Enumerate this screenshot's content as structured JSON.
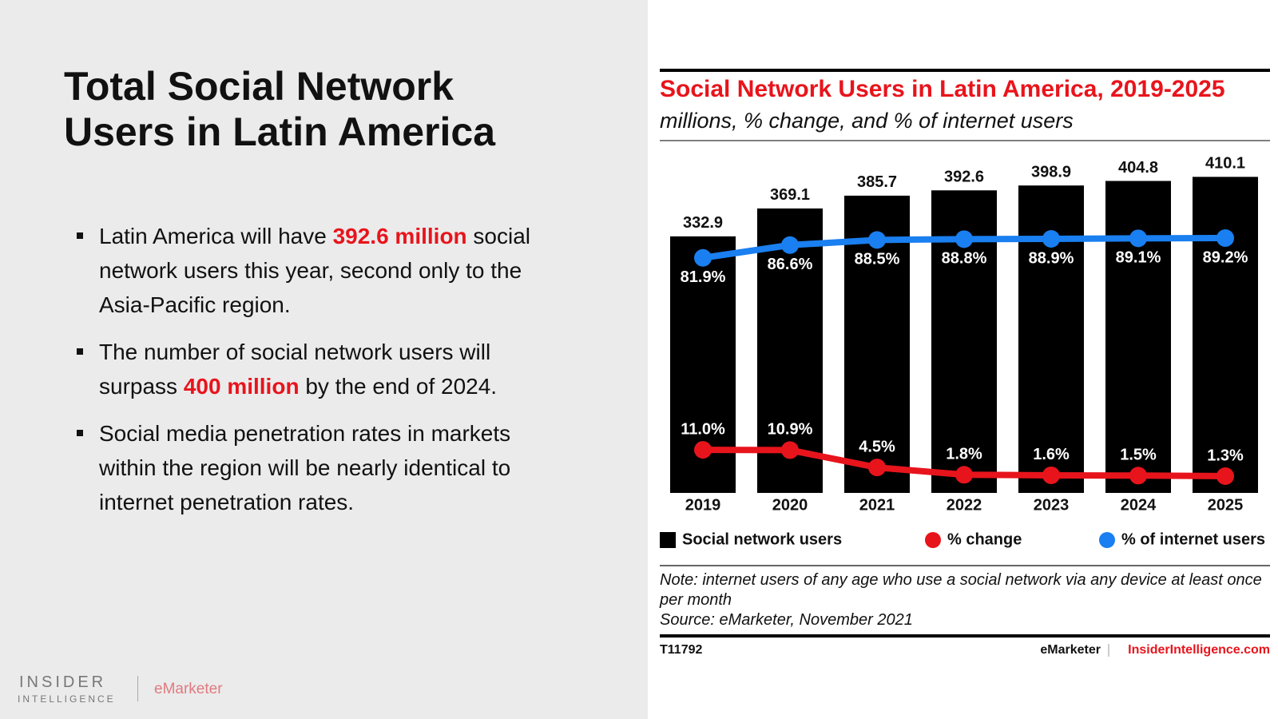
{
  "slide": {
    "title": "Total Social Network Users in Latin America",
    "emphasis_color": "#e8141c",
    "bullets": [
      [
        {
          "text": "Latin America will have "
        },
        {
          "text": "392.6 million",
          "emphasis": true
        },
        {
          "text": " social network users this year, second only to the Asia-Pacific region."
        }
      ],
      [
        {
          "text": "The number of social network users will surpass "
        },
        {
          "text": "400 million",
          "emphasis": true
        },
        {
          "text": " by the end of 2024."
        }
      ],
      [
        {
          "text": "Social media penetration rates in markets within the region will be nearly identical to internet penetration rates."
        }
      ]
    ],
    "logo": {
      "top": "INSIDER",
      "bottom": "INTELLIGENCE",
      "partner": "eMarketer"
    }
  },
  "chart_data": {
    "type": "bar",
    "title": "Social Network Users in Latin America, 2019-2025",
    "subtitle": "millions, % change, and % of internet users",
    "categories": [
      "2019",
      "2020",
      "2021",
      "2022",
      "2023",
      "2024",
      "2025"
    ],
    "series": [
      {
        "name": "Social network users",
        "type": "bar",
        "color": "#000000",
        "values": [
          332.9,
          369.1,
          385.7,
          392.6,
          398.9,
          404.8,
          410.1
        ]
      },
      {
        "name": "% change",
        "type": "line",
        "axis": "y2",
        "color": "#e8141c",
        "values": [
          11.0,
          10.9,
          4.5,
          1.8,
          1.6,
          1.5,
          1.3
        ],
        "value_labels": [
          "11.0%",
          "10.9%",
          "4.5%",
          "1.8%",
          "1.6%",
          "1.5%",
          "1.3%"
        ]
      },
      {
        "name": "% of internet users",
        "type": "line",
        "axis": "y2",
        "color": "#1a7ff0",
        "values": [
          81.9,
          86.6,
          88.5,
          88.8,
          88.9,
          89.1,
          89.2
        ],
        "value_labels": [
          "81.9%",
          "86.6%",
          "88.5%",
          "88.8%",
          "88.9%",
          "89.1%",
          "89.2%"
        ]
      }
    ],
    "ylim": [
      0,
      453
    ],
    "y2lim": [
      -4.9,
      124
    ],
    "legend": "bottom",
    "note": "Note: internet users of any age who use a social network via any device at least once per month",
    "source": "Source: eMarketer, November 2021",
    "id": "T11792",
    "brand": "eMarketer",
    "site": "InsiderIntelligence.com"
  }
}
